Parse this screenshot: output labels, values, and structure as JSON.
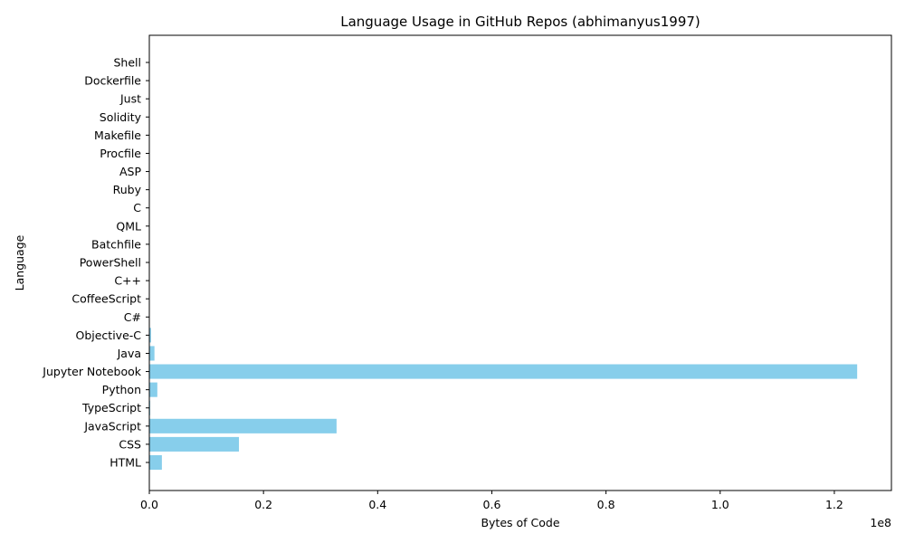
{
  "chart_data": {
    "type": "bar",
    "orientation": "horizontal",
    "title": "Language Usage in GitHub Repos (abhimanyus1997)",
    "xlabel": "Bytes of Code",
    "ylabel": "Language",
    "x_offset_text": "1e8",
    "xlim": [
      0,
      130000000
    ],
    "x_ticks": [
      0,
      20000000,
      40000000,
      60000000,
      80000000,
      100000000,
      120000000
    ],
    "x_tick_labels": [
      "0.0",
      "0.2",
      "0.4",
      "0.6",
      "0.8",
      "1.0",
      "1.2"
    ],
    "bar_color": "#87ceeb",
    "grid": false,
    "categories": [
      "HTML",
      "CSS",
      "JavaScript",
      "TypeScript",
      "Python",
      "Jupyter Notebook",
      "Java",
      "Objective-C",
      "C#",
      "CoffeeScript",
      "C++",
      "PowerShell",
      "Batchfile",
      "QML",
      "C",
      "Ruby",
      "ASP",
      "Procfile",
      "Makefile",
      "Solidity",
      "Just",
      "Dockerfile",
      "Shell"
    ],
    "values": [
      2200000,
      15700000,
      32800000,
      150000,
      1400000,
      124000000,
      900000,
      300000,
      60000,
      40000,
      30000,
      20000,
      15000,
      12000,
      10000,
      8000,
      6000,
      2000,
      4000,
      5000,
      1000,
      3000,
      7000
    ]
  }
}
